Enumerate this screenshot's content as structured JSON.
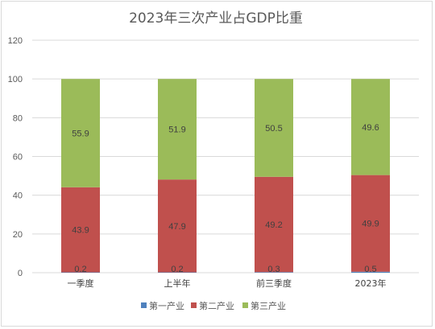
{
  "chart_data": {
    "type": "bar",
    "stacked": true,
    "title": "2023年三次产业占GDP比重",
    "categories": [
      "一季度",
      "上半年",
      "前三季度",
      "2023年"
    ],
    "series": [
      {
        "name": "第一产业",
        "color": "#4f81bd",
        "values": [
          0.2,
          0.2,
          0.3,
          0.5
        ]
      },
      {
        "name": "第二产业",
        "color": "#c0504d",
        "values": [
          43.9,
          47.9,
          49.2,
          49.9
        ]
      },
      {
        "name": "第三产业",
        "color": "#9bbb59",
        "values": [
          55.9,
          51.9,
          50.5,
          49.6
        ]
      }
    ],
    "ylim": [
      0,
      120
    ],
    "yticks": [
      0,
      20,
      40,
      60,
      80,
      100,
      120
    ],
    "grid": true,
    "legend": "bottom"
  }
}
